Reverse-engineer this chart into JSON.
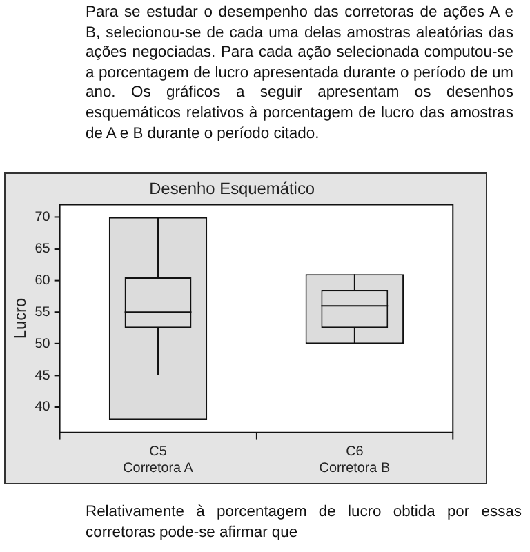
{
  "chart_data": {
    "type": "box",
    "title": "Desenho Esquemático",
    "ylabel": "Lucro",
    "categories": [
      "C5\nCorretora A",
      "C6\nCorretora B"
    ],
    "ylim": [
      36,
      72
    ],
    "yticks": [
      40,
      45,
      50,
      55,
      60,
      65,
      70
    ],
    "series": [
      {
        "type": "bar",
        "base": [
          38,
          50
        ],
        "values": [
          32,
          11
        ],
        "color": "#dcdcdc"
      },
      {
        "color": "#111111",
        "boxes": [
          {
            "low": 45,
            "q1": 52.5,
            "median": 55,
            "q3": 60.5,
            "high": 70
          },
          {
            "low": 50,
            "q1": 52.5,
            "median": 56,
            "q3": 58.5,
            "high": 61
          }
        ]
      }
    ],
    "annotations": [
      "Para se estudar o desempenho das corretoras de ações A e B, selecionou-se de cada uma delas amostras aleatórias das ações negociadas. Para cada ação selecionada computou-se a porcentagem de lucro apresentada durante o período de um ano. Os gráficos a seguir apresentam os desenhos esquemáticos relativos à porcentagem de lucro das amostras de A e B durante o período citado.",
      "Relativamente à porcentagem de lucro obtida por essas corretoras pode-se afirmar que"
    ]
  }
}
